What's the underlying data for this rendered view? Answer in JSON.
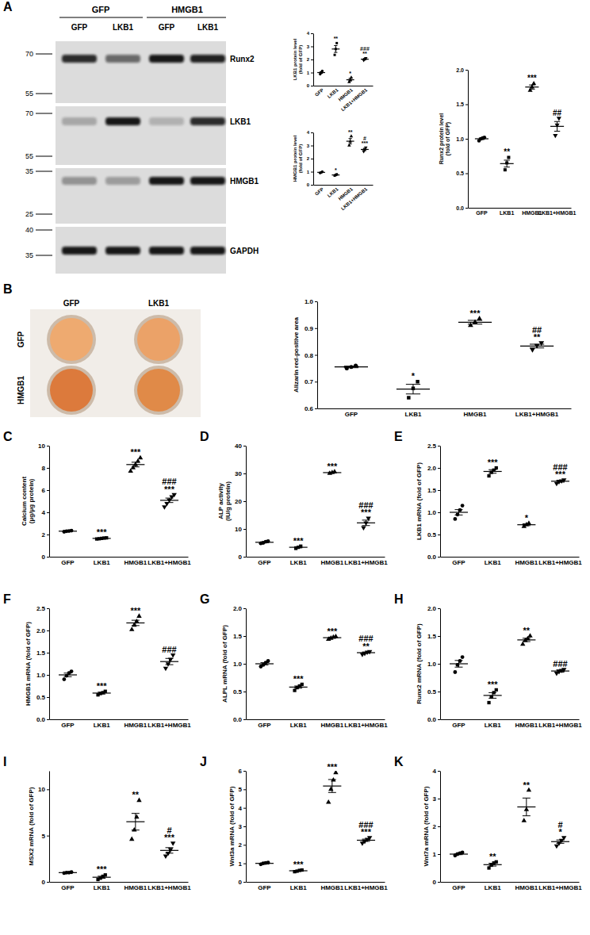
{
  "panel_labels": [
    "A",
    "B",
    "C",
    "D",
    "E",
    "F",
    "G",
    "H",
    "I",
    "J",
    "K"
  ],
  "blot": {
    "groups": [
      "GFP",
      "HMGB1"
    ],
    "lanes": [
      "GFP",
      "LKB1",
      "GFP",
      "LKB1"
    ],
    "rows": [
      {
        "label": "Runx2",
        "markers": [
          70,
          55
        ]
      },
      {
        "label": "LKB1",
        "markers": [
          70,
          55
        ]
      },
      {
        "label": "HMGB1",
        "markers": [
          35,
          25
        ]
      },
      {
        "label": "GAPDH",
        "markers": [
          40,
          35
        ]
      }
    ]
  },
  "wells": {
    "columns": [
      "GFP",
      "LKB1"
    ],
    "rows": [
      "GFP",
      "HMGB1"
    ]
  },
  "chart_data": [
    {
      "type": "dot",
      "ylabel": [
        "LKB1 protein level",
        "(fold of GFP)"
      ],
      "categories": [
        "GFP",
        "LKB1",
        "HMGB1",
        "LKB1+HMGB1"
      ],
      "points": [
        [
          0.88,
          1.0,
          1.12
        ],
        [
          2.35,
          2.8,
          3.25
        ],
        [
          0.28,
          0.45,
          0.62
        ],
        [
          1.95,
          2.02,
          2.1
        ]
      ],
      "values": [
        1.0,
        2.8,
        0.45,
        2.02
      ],
      "errors": [
        0.07,
        0.26,
        0.1,
        0.04
      ],
      "annotations": [
        [],
        [
          "**"
        ],
        [
          "*"
        ],
        [
          "###",
          "**"
        ]
      ],
      "ylim": [
        0,
        4
      ],
      "yticks": [
        0,
        1,
        2,
        3,
        4
      ],
      "color": "#000000",
      "grid": false
    },
    {
      "type": "dot",
      "ylabel": [
        "HMGB1 protein level",
        "(fold of GFP)"
      ],
      "categories": [
        "GFP",
        "LKB1",
        "HMGB1",
        "LKB1+HMGB1"
      ],
      "points": [
        [
          0.9,
          0.95,
          1.0
        ],
        [
          0.7,
          0.75,
          0.8
        ],
        [
          3.0,
          3.3,
          3.7
        ],
        [
          2.55,
          2.7,
          2.85
        ]
      ],
      "values": [
        0.95,
        0.75,
        3.33,
        2.7
      ],
      "errors": [
        0.03,
        0.03,
        0.2,
        0.09
      ],
      "annotations": [
        [],
        [
          "*"
        ],
        [
          "**"
        ],
        [
          "#",
          "***"
        ]
      ],
      "ylim": [
        0,
        4
      ],
      "yticks": [
        0,
        1,
        2,
        3,
        4
      ],
      "color": "#000000",
      "grid": false
    },
    {
      "type": "dot",
      "ylabel": [
        "Runx2 protein level",
        "(fold of GFP)"
      ],
      "categories": [
        "GFP",
        "LKB1",
        "HMGB1",
        "LKB1+HMGB1"
      ],
      "points": [
        [
          0.97,
          1.0,
          1.01,
          1.02
        ],
        [
          0.55,
          0.65,
          0.73
        ],
        [
          1.7,
          1.75,
          1.8
        ],
        [
          1.05,
          1.2,
          1.3
        ]
      ],
      "values": [
        1.0,
        0.64,
        1.75,
        1.18
      ],
      "errors": [
        0.01,
        0.05,
        0.03,
        0.07
      ],
      "annotations": [
        [],
        [
          "**"
        ],
        [
          "***"
        ],
        [
          "##"
        ]
      ],
      "ylim": [
        0,
        2
      ],
      "yticks": [
        {
          "value": 0,
          "label": "0.0"
        },
        0.5,
        {
          "value": 1,
          "label": "1.0"
        },
        1.5,
        {
          "value": 2,
          "label": "2.0"
        }
      ],
      "color": "#000000",
      "grid": false
    },
    {
      "type": "dot",
      "ylabel": [
        "Alizarin red-positive area"
      ],
      "categories": [
        "GFP",
        "LKB1",
        "HMGB1",
        "LKB1+HMGB1"
      ],
      "points": [
        [
          0.75,
          0.755,
          0.76
        ],
        [
          0.64,
          0.675,
          0.7
        ],
        [
          0.91,
          0.922,
          0.935
        ],
        [
          0.82,
          0.835,
          0.845
        ]
      ],
      "values": [
        0.755,
        0.672,
        0.922,
        0.833
      ],
      "errors": [
        0.003,
        0.018,
        0.007,
        0.007
      ],
      "annotations": [
        [],
        [
          "*"
        ],
        [
          "***"
        ],
        [
          "##",
          "**"
        ]
      ],
      "ylim": [
        0.6,
        1.0
      ],
      "yticks": [
        0.6,
        0.7,
        0.8,
        0.9,
        {
          "value": 1,
          "label": "1.0"
        }
      ],
      "color": "#000000",
      "grid": false
    },
    {
      "type": "dot",
      "ylabel": [
        "Calcium content",
        "(μg/μg protein)"
      ],
      "categories": [
        "GFP",
        "LKB1",
        "HMGB1",
        "LKB1+HMGB1"
      ],
      "points": [
        [
          2.25,
          2.3,
          2.32,
          2.35
        ],
        [
          1.6,
          1.62,
          1.65,
          1.68,
          1.7
        ],
        [
          7.7,
          8.0,
          8.3,
          8.6,
          8.9
        ],
        [
          4.5,
          4.8,
          5.1,
          5.4,
          5.6
        ]
      ],
      "values": [
        2.3,
        1.65,
        8.3,
        5.08
      ],
      "errors": [
        0.02,
        0.02,
        0.21,
        0.2
      ],
      "annotations": [
        [],
        [
          "***"
        ],
        [
          "***"
        ],
        [
          "###",
          "***"
        ]
      ],
      "ylim": [
        0,
        10
      ],
      "yticks": [
        0,
        2,
        4,
        6,
        8,
        10
      ],
      "color": "#000000",
      "grid": false
    },
    {
      "type": "dot",
      "ylabel": [
        "ALP activity",
        "(IU/g protein)"
      ],
      "categories": [
        "GFP",
        "LKB1",
        "HMGB1",
        "LKB1+HMGB1"
      ],
      "points": [
        [
          4.8,
          5.0,
          5.4,
          5.6
        ],
        [
          3.0,
          3.4,
          3.8
        ],
        [
          30.0,
          30.3,
          30.6
        ],
        [
          10.5,
          12.2,
          13.9
        ]
      ],
      "values": [
        5.2,
        3.4,
        30.3,
        12.2
      ],
      "errors": [
        0.18,
        0.23,
        0.17,
        0.98
      ],
      "annotations": [
        [],
        [
          "***"
        ],
        [
          "***"
        ],
        [
          "###",
          "***"
        ]
      ],
      "ylim": [
        0,
        40
      ],
      "yticks": [
        0,
        10,
        20,
        30,
        40
      ],
      "color": "#000000",
      "grid": false
    },
    {
      "type": "dot",
      "ylabel": [
        "LKB1 mRNA (fold of GFP)"
      ],
      "categories": [
        "GFP",
        "LKB1",
        "HMGB1",
        "LKB1+HMGB1"
      ],
      "points": [
        [
          0.85,
          0.95,
          1.05,
          1.15
        ],
        [
          1.82,
          1.9,
          1.95,
          2.0
        ],
        [
          0.68,
          0.72,
          0.75
        ],
        [
          1.65,
          1.69,
          1.71,
          1.73
        ]
      ],
      "values": [
        1.0,
        1.92,
        0.72,
        1.7
      ],
      "errors": [
        0.06,
        0.04,
        0.02,
        0.02
      ],
      "annotations": [
        [],
        [
          "***"
        ],
        [
          "*"
        ],
        [
          "###",
          "***"
        ]
      ],
      "ylim": [
        0,
        2.5
      ],
      "yticks": [
        {
          "value": 0,
          "label": "0.0"
        },
        0.5,
        {
          "value": 1,
          "label": "1.0"
        },
        1.5,
        {
          "value": 2,
          "label": "2.0"
        },
        2.5
      ],
      "color": "#000000",
      "grid": false
    },
    {
      "type": "dot",
      "ylabel": [
        "HMGB1 mRNA (fold of GFP)"
      ],
      "categories": [
        "GFP",
        "LKB1",
        "HMGB1",
        "LKB1+HMGB1"
      ],
      "points": [
        [
          0.9,
          0.98,
          1.04,
          1.08
        ],
        [
          0.55,
          0.58,
          0.6,
          0.63
        ],
        [
          2.02,
          2.12,
          2.2,
          2.32
        ],
        [
          1.15,
          1.25,
          1.35,
          1.45
        ]
      ],
      "values": [
        1.0,
        0.59,
        2.17,
        1.3
      ],
      "errors": [
        0.04,
        0.02,
        0.06,
        0.07
      ],
      "annotations": [
        [],
        [
          "***"
        ],
        [
          "***"
        ],
        [
          "###"
        ]
      ],
      "ylim": [
        0,
        2.5
      ],
      "yticks": [
        {
          "value": 0,
          "label": "0.0"
        },
        0.5,
        {
          "value": 1,
          "label": "1.0"
        },
        1.5,
        {
          "value": 2,
          "label": "2.0"
        },
        2.5
      ],
      "color": "#000000",
      "grid": false
    },
    {
      "type": "dot",
      "ylabel": [
        "ALPL mRNA (fold of GFP)"
      ],
      "categories": [
        "GFP",
        "LKB1",
        "HMGB1",
        "LKB1+HMGB1"
      ],
      "points": [
        [
          0.95,
          0.98,
          1.02,
          1.05
        ],
        [
          0.52,
          0.57,
          0.6,
          0.63
        ],
        [
          1.44,
          1.46,
          1.48,
          1.49
        ],
        [
          1.17,
          1.19,
          1.21,
          1.22
        ]
      ],
      "values": [
        1.0,
        0.58,
        1.47,
        1.2
      ],
      "errors": [
        0.02,
        0.02,
        0.01,
        0.01
      ],
      "annotations": [
        [],
        [
          "***"
        ],
        [
          "***"
        ],
        [
          "###",
          "**"
        ]
      ],
      "ylim": [
        0,
        2
      ],
      "yticks": [
        {
          "value": 0,
          "label": "0.0"
        },
        0.5,
        {
          "value": 1,
          "label": "1.0"
        },
        1.5,
        {
          "value": 2,
          "label": "2.0"
        }
      ],
      "color": "#000000",
      "grid": false
    },
    {
      "type": "dot",
      "ylabel": [
        "Runx2 mRNA (fold of GFP)"
      ],
      "categories": [
        "GFP",
        "LKB1",
        "HMGB1",
        "LKB1+HMGB1"
      ],
      "points": [
        [
          0.85,
          0.98,
          1.05,
          1.12
        ],
        [
          0.3,
          0.4,
          0.48,
          0.53
        ],
        [
          1.35,
          1.42,
          1.45,
          1.5
        ],
        [
          0.83,
          0.86,
          0.88,
          0.9
        ]
      ],
      "values": [
        1.0,
        0.43,
        1.43,
        0.87
      ],
      "errors": [
        0.06,
        0.05,
        0.03,
        0.02
      ],
      "annotations": [
        [],
        [
          "***"
        ],
        [
          "**"
        ],
        [
          "###"
        ]
      ],
      "ylim": [
        0,
        2
      ],
      "yticks": [
        {
          "value": 0,
          "label": "0.0"
        },
        0.5,
        {
          "value": 1,
          "label": "1.0"
        },
        1.5,
        {
          "value": 2,
          "label": "2.0"
        }
      ],
      "color": "#000000",
      "grid": false
    },
    {
      "type": "dot",
      "ylabel": [
        "MSX2 mRNA (fold of GFP)"
      ],
      "categories": [
        "GFP",
        "LKB1",
        "HMGB1",
        "LKB1+HMGB1"
      ],
      "points": [
        [
          0.95,
          1.0,
          1.0,
          1.05
        ],
        [
          0.25,
          0.4,
          0.6,
          0.75
        ],
        [
          4.6,
          5.6,
          7.0,
          8.8
        ],
        [
          2.8,
          3.1,
          3.5,
          4.2
        ]
      ],
      "values": [
        1.0,
        0.5,
        6.5,
        3.4
      ],
      "errors": [
        0.02,
        0.11,
        0.9,
        0.3
      ],
      "annotations": [
        [],
        [
          "***"
        ],
        [
          "**"
        ],
        [
          "#",
          "***"
        ]
      ],
      "ylim": [
        0,
        12
      ],
      "yticks": [
        0,
        5,
        10
      ],
      "color": "#000000",
      "grid": false
    },
    {
      "type": "dot",
      "ylabel": [
        "Wnt3a mRNA (fold of GFP)"
      ],
      "categories": [
        "GFP",
        "LKB1",
        "HMGB1",
        "LKB1+HMGB1"
      ],
      "points": [
        [
          0.95,
          1.0,
          1.02,
          1.04
        ],
        [
          0.55,
          0.58,
          0.62,
          0.64
        ],
        [
          4.3,
          5.0,
          5.5,
          5.9
        ],
        [
          2.1,
          2.2,
          2.3,
          2.4
        ]
      ],
      "values": [
        1.0,
        0.6,
        5.18,
        2.25
      ],
      "errors": [
        0.02,
        0.02,
        0.35,
        0.06
      ],
      "annotations": [
        [],
        [
          "***"
        ],
        [
          "***"
        ],
        [
          "###",
          "***"
        ]
      ],
      "ylim": [
        0,
        6
      ],
      "yticks": [
        0,
        1,
        2,
        3,
        4,
        5,
        6
      ],
      "color": "#000000",
      "grid": false
    },
    {
      "type": "dot",
      "ylabel": [
        "Wnt7a mRNA (fold of GFP)"
      ],
      "categories": [
        "GFP",
        "LKB1",
        "HMGB1",
        "LKB1+HMGB1"
      ],
      "points": [
        [
          0.95,
          1.0,
          1.03,
          1.06
        ],
        [
          0.5,
          0.6,
          0.68,
          0.72
        ],
        [
          2.2,
          2.6,
          3.3
        ],
        [
          1.3,
          1.4,
          1.5,
          1.6
        ]
      ],
      "values": [
        1.0,
        0.62,
        2.7,
        1.45
      ],
      "errors": [
        0.02,
        0.05,
        0.32,
        0.06
      ],
      "annotations": [
        [],
        [
          "**"
        ],
        [
          "**"
        ],
        [
          "#",
          "*"
        ]
      ],
      "ylim": [
        0,
        4
      ],
      "yticks": [
        0,
        1,
        2,
        3,
        4
      ],
      "color": "#000000",
      "grid": false
    }
  ]
}
